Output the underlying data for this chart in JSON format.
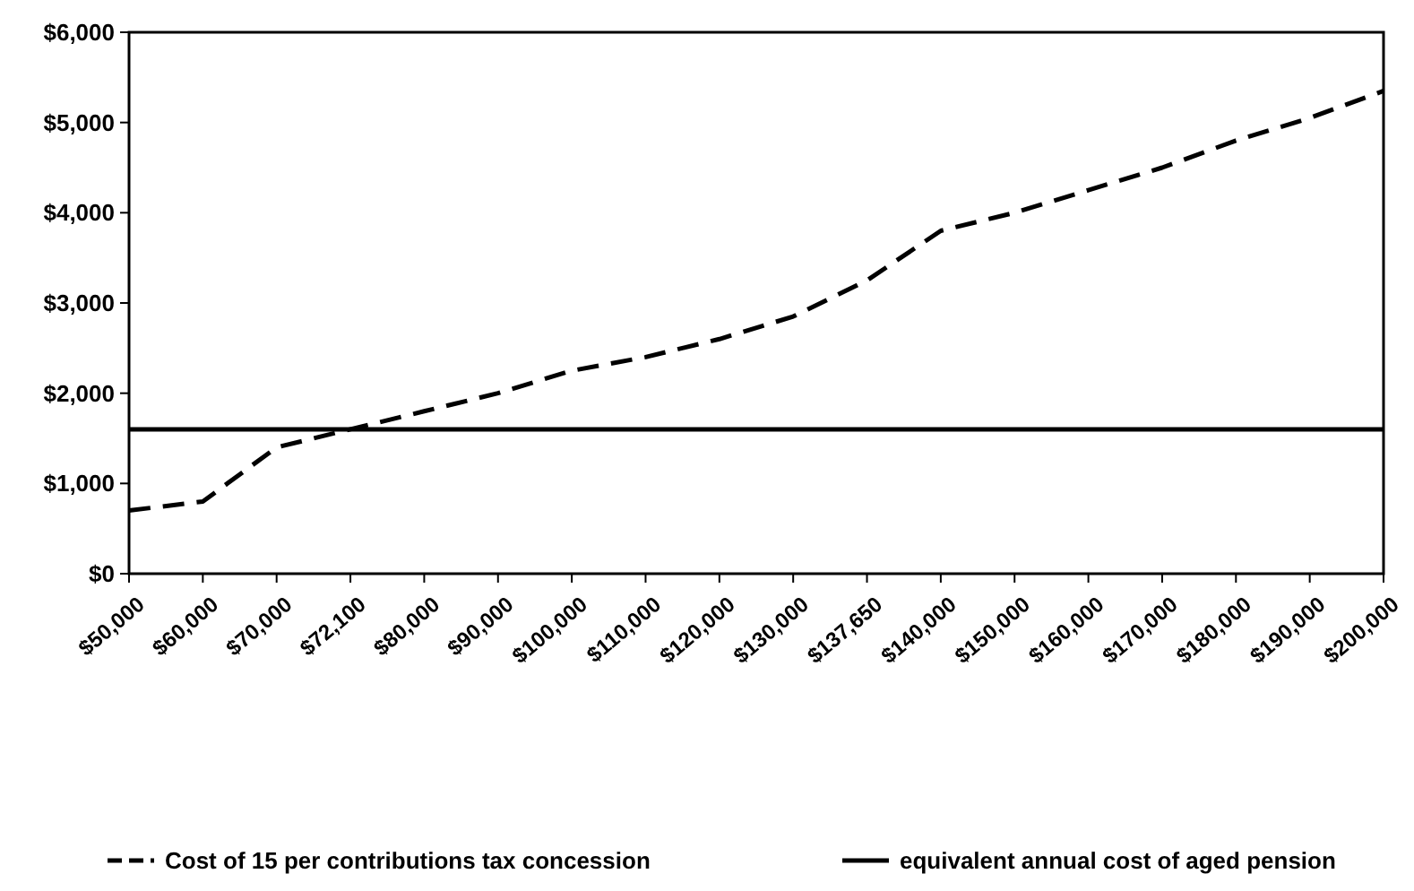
{
  "chart_data": {
    "type": "line",
    "categories": [
      "$50,000",
      "$60,000",
      "$70,000",
      "$72,100",
      "$80,000",
      "$90,000",
      "$100,000",
      "$110,000",
      "$120,000",
      "$130,000",
      "$137,650",
      "$140,000",
      "$150,000",
      "$160,000",
      "$170,000",
      "$180,000",
      "$190,000",
      "$200,000"
    ],
    "series": [
      {
        "name": "Cost of 15 per contributions tax concession",
        "color": "#000000",
        "line_style": "dashed",
        "values": [
          700,
          800,
          1400,
          1600,
          1800,
          2000,
          2250,
          2400,
          2600,
          2850,
          3250,
          3800,
          4000,
          4250,
          4500,
          4800,
          5050,
          5350
        ]
      },
      {
        "name": "equivalent annual cost of aged pension",
        "color": "#000000",
        "line_style": "solid",
        "values": [
          1600,
          1600,
          1600,
          1600,
          1600,
          1600,
          1600,
          1600,
          1600,
          1600,
          1600,
          1600,
          1600,
          1600,
          1600,
          1600,
          1600,
          1600
        ]
      }
    ],
    "ylim": [
      0,
      6000
    ],
    "yticks": [
      {
        "value": 0,
        "label": "$0"
      },
      {
        "value": 1000,
        "label": "$1,000"
      },
      {
        "value": 2000,
        "label": "$2,000"
      },
      {
        "value": 3000,
        "label": "$3,000"
      },
      {
        "value": 4000,
        "label": "$4,000"
      },
      {
        "value": 5000,
        "label": "$5,000"
      },
      {
        "value": 6000,
        "label": "$6,000"
      }
    ],
    "grid": false,
    "legend": "bottom",
    "marker": "none"
  }
}
